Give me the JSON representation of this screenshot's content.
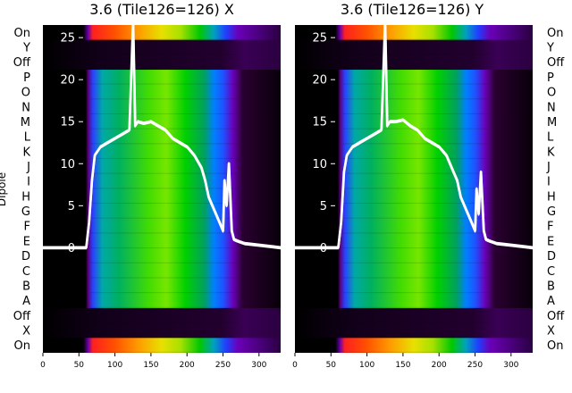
{
  "chart_data": [
    {
      "type": "heatmap",
      "title": "3.6 (Tile126=126) X",
      "ylabel": "Dipole",
      "row_labels": [
        "On",
        "Y",
        "Off",
        "P",
        "O",
        "N",
        "M",
        "L",
        "K",
        "J",
        "I",
        "H",
        "G",
        "F",
        "E",
        "D",
        "C",
        "B",
        "A",
        "Off",
        "X",
        "On"
      ],
      "x_ticks": [
        0,
        50,
        100,
        150,
        200,
        250,
        300
      ],
      "xlim": [
        0,
        330
      ],
      "overlay_y_ticks": [
        0,
        5,
        10,
        15,
        20,
        25
      ],
      "overlay_ylim": [
        -12.5,
        26.5
      ],
      "colormap": "spectral-like (black→purple→blue→green→yellow→red)",
      "grid": false,
      "spectrum_white_line": {
        "x": [
          0,
          60,
          64,
          68,
          72,
          80,
          90,
          100,
          110,
          120,
          125,
          128,
          132,
          140,
          150,
          160,
          170,
          180,
          190,
          200,
          210,
          220,
          225,
          230,
          240,
          245,
          250,
          252,
          255,
          258,
          262,
          265,
          270,
          280,
          300,
          320,
          330
        ],
        "y": [
          0,
          0,
          3,
          8,
          11,
          12,
          12.5,
          13,
          13.5,
          14,
          27,
          14.5,
          15,
          14.8,
          15,
          14.5,
          14,
          13,
          12.5,
          12,
          11,
          9.5,
          8,
          6,
          4,
          3,
          2,
          8,
          5,
          10,
          2,
          1,
          0.8,
          0.5,
          0.3,
          0.1,
          0
        ]
      }
    },
    {
      "type": "heatmap",
      "title": "3.6 (Tile126=126) Y",
      "ylabel": "",
      "row_labels": [
        "On",
        "Y",
        "Off",
        "P",
        "O",
        "N",
        "M",
        "L",
        "K",
        "J",
        "I",
        "H",
        "G",
        "F",
        "E",
        "D",
        "C",
        "B",
        "A",
        "Off",
        "X",
        "On"
      ],
      "x_ticks": [
        0,
        50,
        100,
        150,
        200,
        250,
        300
      ],
      "xlim": [
        0,
        330
      ],
      "overlay_y_ticks": [
        0,
        5,
        10,
        15,
        20,
        25
      ],
      "overlay_ylim": [
        -12.5,
        26.5
      ],
      "colormap": "spectral-like (black→purple→blue→green→yellow→red)",
      "grid": false,
      "spectrum_white_line": {
        "x": [
          0,
          60,
          64,
          68,
          72,
          80,
          90,
          100,
          110,
          120,
          125,
          128,
          132,
          140,
          150,
          160,
          170,
          180,
          190,
          200,
          210,
          220,
          225,
          230,
          240,
          245,
          250,
          252,
          255,
          258,
          262,
          265,
          270,
          280,
          300,
          320,
          330
        ],
        "y": [
          0,
          0,
          3,
          9,
          11,
          12,
          12.5,
          13,
          13.5,
          14,
          27,
          14.5,
          15,
          15,
          15.2,
          14.5,
          14,
          13,
          12.5,
          12,
          11,
          9,
          8,
          6,
          4,
          3,
          2,
          7,
          4,
          9,
          2,
          1,
          0.8,
          0.5,
          0.3,
          0.1,
          0
        ]
      }
    }
  ]
}
